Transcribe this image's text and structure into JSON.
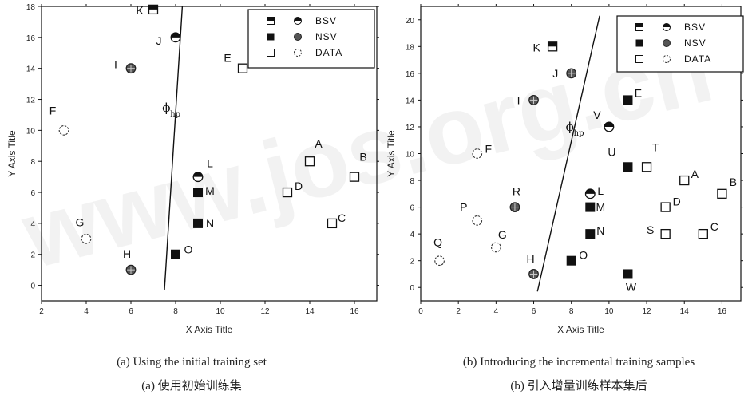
{
  "chart_data": [
    {
      "type": "scatter",
      "xlabel": "X Axis Title",
      "ylabel": "Y Axis Title",
      "xlim": [
        2,
        17
      ],
      "ylim": [
        -1,
        18
      ],
      "xticks": [
        "2",
        "4",
        "6",
        "8",
        "10",
        "12",
        "14",
        "16"
      ],
      "yticks": [
        "0",
        "2",
        "4",
        "6",
        "8",
        "10",
        "12",
        "14",
        "16",
        "18"
      ],
      "legend": {
        "position": "top-right",
        "entries": [
          "BSV",
          "NSV",
          "DATA"
        ]
      },
      "hyperplane_label": "ϕ",
      "hyperplane_sub": "hp",
      "hyperplane_label_at": [
        7.4,
        11.2
      ],
      "hyperplane": [
        [
          7.5,
          -0.3
        ],
        [
          8.3,
          18.0
        ]
      ],
      "points": [
        {
          "label": "K",
          "x": 7.0,
          "y": 17.8,
          "kind": "bsv",
          "shape": "square"
        },
        {
          "label": "J",
          "x": 8.0,
          "y": 16.0,
          "kind": "bsv",
          "shape": "circle"
        },
        {
          "label": "I",
          "x": 6.0,
          "y": 14.0,
          "kind": "nsv",
          "shape": "circle"
        },
        {
          "label": "E",
          "x": 11.0,
          "y": 14.0,
          "kind": "data",
          "shape": "square"
        },
        {
          "label": "F",
          "x": 3.0,
          "y": 10.0,
          "kind": "data",
          "shape": "circle"
        },
        {
          "label": "L",
          "x": 9.0,
          "y": 7.0,
          "kind": "bsv",
          "shape": "circle"
        },
        {
          "label": "M",
          "x": 9.0,
          "y": 6.0,
          "kind": "nsv",
          "shape": "square"
        },
        {
          "label": "N",
          "x": 9.0,
          "y": 4.0,
          "kind": "nsv",
          "shape": "square"
        },
        {
          "label": "O",
          "x": 8.0,
          "y": 2.0,
          "kind": "nsv",
          "shape": "square"
        },
        {
          "label": "G",
          "x": 4.0,
          "y": 3.0,
          "kind": "data",
          "shape": "circle"
        },
        {
          "label": "H",
          "x": 6.0,
          "y": 1.0,
          "kind": "nsv",
          "shape": "circle"
        },
        {
          "label": "A",
          "x": 14.0,
          "y": 8.0,
          "kind": "data",
          "shape": "square"
        },
        {
          "label": "B",
          "x": 16.0,
          "y": 7.0,
          "kind": "data",
          "shape": "square"
        },
        {
          "label": "C",
          "x": 15.0,
          "y": 4.0,
          "kind": "data",
          "shape": "square"
        },
        {
          "label": "D",
          "x": 13.0,
          "y": 6.0,
          "kind": "data",
          "shape": "square"
        }
      ]
    },
    {
      "type": "scatter",
      "xlabel": "X Axis Title",
      "ylabel": "Y Axis Title",
      "xlim": [
        0,
        17
      ],
      "ylim": [
        -1,
        21
      ],
      "xticks": [
        "0",
        "2",
        "4",
        "6",
        "8",
        "10",
        "12",
        "14",
        "16"
      ],
      "yticks": [
        "0",
        "2",
        "4",
        "6",
        "8",
        "10",
        "12",
        "14",
        "16",
        "18",
        "20"
      ],
      "legend": {
        "position": "top-right",
        "entries": [
          "BSV",
          "NSV",
          "DATA"
        ]
      },
      "hyperplane_label": "ϕ",
      "hyperplane_sub": "hp",
      "hyperplane_label_at": [
        7.7,
        11.7
      ],
      "hyperplane": [
        [
          6.2,
          -0.3
        ],
        [
          9.5,
          20.3
        ]
      ],
      "points": [
        {
          "label": "K",
          "x": 7.0,
          "y": 18.0,
          "kind": "bsv",
          "shape": "square"
        },
        {
          "label": "J",
          "x": 8.0,
          "y": 16.0,
          "kind": "nsv",
          "shape": "circle"
        },
        {
          "label": "I",
          "x": 6.0,
          "y": 14.0,
          "kind": "nsv",
          "shape": "circle"
        },
        {
          "label": "E",
          "x": 11.0,
          "y": 14.0,
          "kind": "nsv",
          "shape": "square"
        },
        {
          "label": "V",
          "x": 10.0,
          "y": 12.0,
          "kind": "bsv",
          "shape": "circle"
        },
        {
          "label": "F",
          "x": 3.0,
          "y": 10.0,
          "kind": "data",
          "shape": "circle"
        },
        {
          "label": "U",
          "x": 11.0,
          "y": 9.0,
          "kind": "nsv",
          "shape": "square"
        },
        {
          "label": "T",
          "x": 12.0,
          "y": 9.0,
          "kind": "data",
          "shape": "square"
        },
        {
          "label": "A",
          "x": 14.0,
          "y": 8.0,
          "kind": "data",
          "shape": "square"
        },
        {
          "label": "B",
          "x": 16.0,
          "y": 7.0,
          "kind": "data",
          "shape": "square"
        },
        {
          "label": "L",
          "x": 9.0,
          "y": 7.0,
          "kind": "bsv",
          "shape": "circle"
        },
        {
          "label": "M",
          "x": 9.0,
          "y": 6.0,
          "kind": "nsv",
          "shape": "square"
        },
        {
          "label": "R",
          "x": 5.0,
          "y": 6.0,
          "kind": "nsv",
          "shape": "circle"
        },
        {
          "label": "D",
          "x": 13.0,
          "y": 6.0,
          "kind": "data",
          "shape": "square"
        },
        {
          "label": "P",
          "x": 3.0,
          "y": 5.0,
          "kind": "data",
          "shape": "circle"
        },
        {
          "label": "N",
          "x": 9.0,
          "y": 4.0,
          "kind": "nsv",
          "shape": "square"
        },
        {
          "label": "S",
          "x": 13.0,
          "y": 4.0,
          "kind": "data",
          "shape": "square"
        },
        {
          "label": "C",
          "x": 15.0,
          "y": 4.0,
          "kind": "data",
          "shape": "square"
        },
        {
          "label": "G",
          "x": 4.0,
          "y": 3.0,
          "kind": "data",
          "shape": "circle"
        },
        {
          "label": "Q",
          "x": 1.0,
          "y": 2.0,
          "kind": "data",
          "shape": "circle"
        },
        {
          "label": "O",
          "x": 8.0,
          "y": 2.0,
          "kind": "nsv",
          "shape": "square"
        },
        {
          "label": "H",
          "x": 6.0,
          "y": 1.0,
          "kind": "nsv",
          "shape": "circle"
        },
        {
          "label": "W",
          "x": 11.0,
          "y": 1.0,
          "kind": "nsv",
          "shape": "square"
        }
      ]
    }
  ],
  "captions": [
    {
      "en": "(a) Using the initial training set",
      "zh": "(a) 使用初始训练集"
    },
    {
      "en": "(b) Introducing the incremental training samples",
      "zh": "(b) 引入增量训练样本集后"
    }
  ],
  "watermark": "www.jos.org.cn"
}
